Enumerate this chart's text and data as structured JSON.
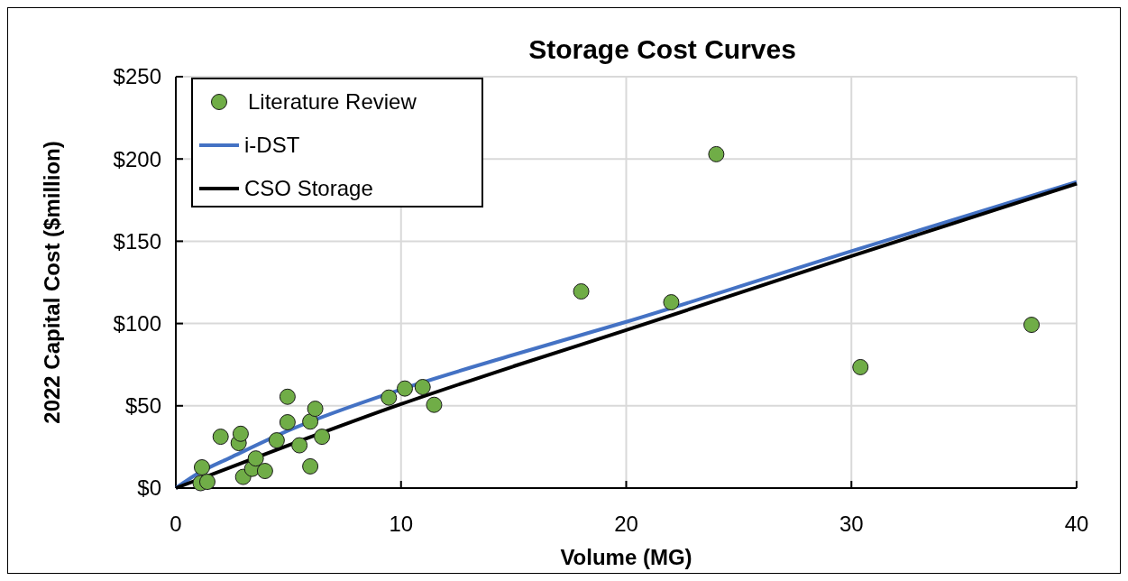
{
  "chart_data": {
    "type": "scatter",
    "title": "Storage Cost Curves",
    "xlabel": "Volume (MG)",
    "ylabel": "2022 Capital Cost ($million)",
    "xlim": [
      0,
      40
    ],
    "xticks": [
      0,
      10,
      20,
      30,
      40
    ],
    "ylim": [
      0,
      250
    ],
    "yticks": [
      {
        "value": 0,
        "label": "$0"
      },
      {
        "value": 50,
        "label": "$50"
      },
      {
        "value": 100,
        "label": "$100"
      },
      {
        "value": 150,
        "label": "$150"
      },
      {
        "value": 200,
        "label": "$200"
      },
      {
        "value": 250,
        "label": "$250"
      }
    ],
    "grid": true,
    "legend": "top left",
    "marker": "circle",
    "series": [
      {
        "name": "Literature Review",
        "color": "#70ad47",
        "x": [
          1.16,
          1.1,
          1.4,
          1.99,
          2.79,
          2.88,
          2.99,
          3.39,
          3.55,
          3.96,
          4.48,
          4.96,
          4.96,
          5.49,
          5.97,
          6.19,
          5.97,
          6.49,
          9.46,
          10.17,
          10.96,
          11.47,
          18,
          22,
          24,
          30.4,
          38
        ],
        "values": [
          12.6,
          3,
          3.8,
          31.2,
          27.4,
          33,
          6.8,
          11.7,
          18,
          10.4,
          29,
          55.5,
          40,
          26,
          40.4,
          48.2,
          13.2,
          31.2,
          55,
          60.5,
          61.4,
          50.6,
          119.5,
          112.9,
          202.9,
          73.5,
          99.2
        ]
      },
      {
        "name": "i-DST",
        "type": "line",
        "color": "#4472c4",
        "marker": "none",
        "x": [
          0,
          1,
          2.5,
          5,
          10,
          15,
          20,
          30,
          40
        ],
        "values": [
          0,
          9,
          19,
          35,
          60,
          81,
          101,
          144,
          186
        ]
      },
      {
        "name": "CSO Storage",
        "type": "line",
        "color": "#000000",
        "marker": "none",
        "x": [
          0,
          5,
          10,
          15,
          20,
          30,
          40
        ],
        "values": [
          0,
          26,
          51,
          74,
          96,
          141,
          185
        ]
      }
    ]
  }
}
